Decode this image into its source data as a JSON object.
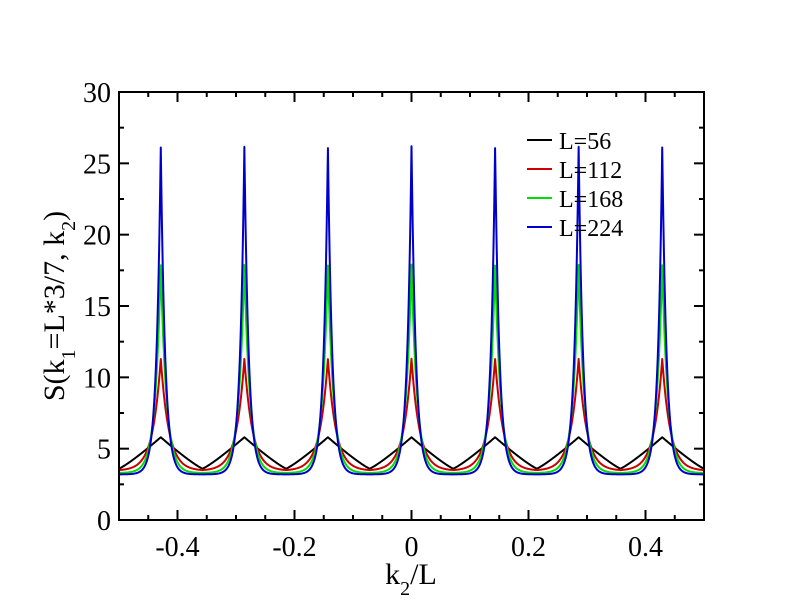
{
  "chart_data": {
    "type": "line",
    "title": "",
    "xlabel": {
      "main": "k",
      "sub": "2",
      "rest": "/L"
    },
    "ylabel": {
      "p1": "S(k",
      "s1": "1",
      "p2": "=L*3/7, k",
      "s2": "2",
      "p3": ")"
    },
    "xlim": [
      -0.5,
      0.5
    ],
    "ylim": [
      0,
      30
    ],
    "xticks": [
      -0.4,
      -0.2,
      0,
      0.2,
      0.4
    ],
    "xtick_labels": [
      "-0.4",
      "-0.2",
      "0",
      "0.2",
      "0.4"
    ],
    "yticks": [
      0,
      5,
      10,
      15,
      20,
      25,
      30
    ],
    "ytick_labels": [
      "0",
      "5",
      "10",
      "15",
      "20",
      "25",
      "30"
    ],
    "grid": false,
    "legend_position": "top-right",
    "peak_positions": [
      -0.4286,
      -0.2857,
      -0.1429,
      0,
      0.1429,
      0.2857,
      0.4286
    ],
    "series": [
      {
        "name": "L=56",
        "color": "#000000",
        "peak": 5.8,
        "valley": 3.6,
        "edge": 3.7
      },
      {
        "name": "L=112",
        "color": "#cc0000",
        "peak": 11.3,
        "valley": 3.5,
        "edge": 3.5
      },
      {
        "name": "L=168",
        "color": "#00dd00",
        "peak": 17.9,
        "valley": 3.3,
        "edge": 3.4
      },
      {
        "name": "L=224",
        "color": "#0000cc",
        "peak": 26.2,
        "valley": 3.2,
        "edge": 3.3
      }
    ]
  }
}
